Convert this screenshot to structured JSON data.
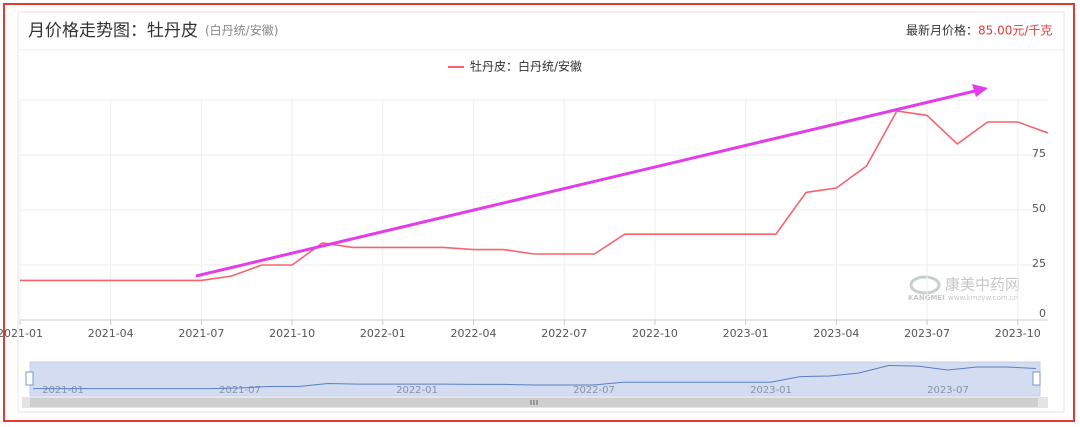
{
  "chart_data": {
    "type": "line",
    "title": "月价格走势图：牡丹皮",
    "subtitle": "(白丹统/安徽)",
    "latest_label": "最新月价格：",
    "latest_value": "85.00元/千克",
    "categories": [
      "2021-01",
      null,
      null,
      "2021-04",
      null,
      null,
      "2021-07",
      null,
      null,
      "2021-10",
      null,
      null,
      "2022-01",
      null,
      null,
      "2022-04",
      null,
      null,
      "2022-07",
      null,
      null,
      "2022-10",
      null,
      null,
      "2023-01",
      null,
      null,
      "2023-04",
      null,
      null,
      "2023-07",
      null,
      null,
      "2023-10",
      null
    ],
    "series": [
      {
        "name": "牡丹皮：白丹统/安徽",
        "color": "#f5646c",
        "values": [
          18,
          18,
          18,
          18,
          18,
          18,
          18,
          20,
          25,
          25,
          35,
          33,
          33,
          33,
          33,
          32,
          32,
          30,
          30,
          30,
          39,
          39,
          39,
          39,
          39,
          39,
          58,
          60,
          70,
          95,
          93,
          80,
          90,
          90,
          85
        ]
      }
    ],
    "ylim": [
      0,
      100
    ],
    "yticks": [
      0,
      25,
      50,
      75
    ],
    "grid": true,
    "legend": "top",
    "slider_labels": [
      "2021-01",
      "2021-07",
      "2022-01",
      "2022-07",
      "2023-01",
      "2023-07"
    ],
    "watermark": {
      "name": "康美中药网",
      "brand": "KANGMEI",
      "url": "www.kmzyw.com.cn"
    }
  }
}
